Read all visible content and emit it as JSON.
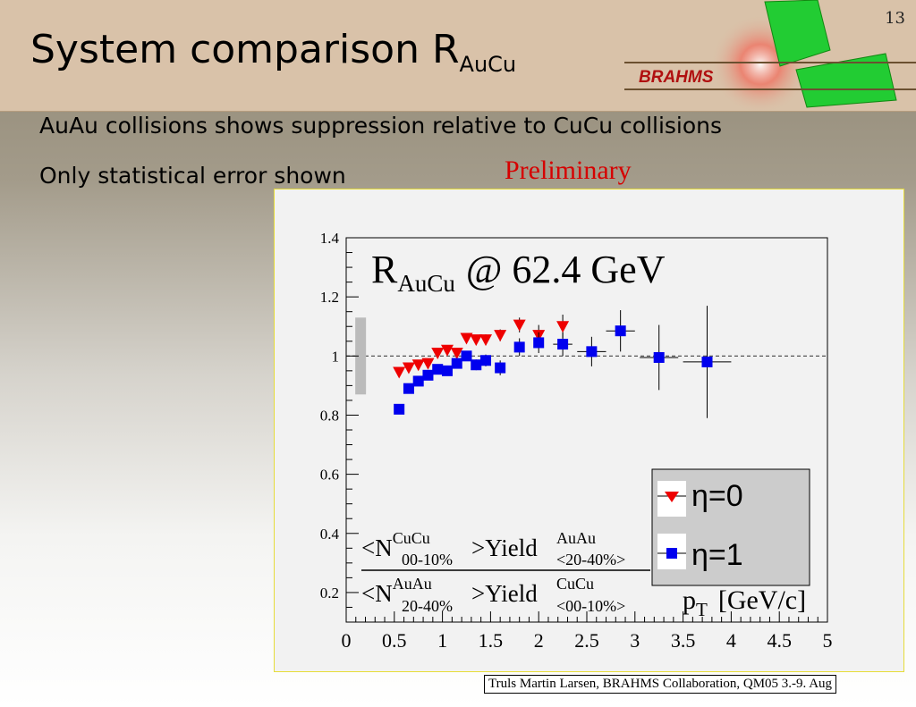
{
  "slide": {
    "page_number": "13",
    "title_main": "System comparison R",
    "title_sub": "AuCu",
    "bullets": [
      "AuAu collisions shows suppression relative to CuCu collisions",
      "Only statistical error shown"
    ],
    "preliminary": "Preliminary",
    "logo_text": "BRAHMS",
    "footer": "Truls Martin Larsen, BRAHMS Collaboration, QM05 3.-9. Aug"
  },
  "colors": {
    "eta0": "#ee0000",
    "eta1": "#0000ee",
    "header_bg": "#d9c2a9"
  },
  "chart_data": {
    "type": "scatter",
    "title_main": "R",
    "title_sub": "AuCu",
    "title_rest": "@ 62.4 GeV",
    "xlabel_main": "p",
    "xlabel_sub": "T",
    "xlabel_rest": "[GeV/c]",
    "xlim": [
      0,
      5
    ],
    "ylim": [
      0.1,
      1.4
    ],
    "x_ticks": [
      "0",
      "0.5",
      "1",
      "1.5",
      "2",
      "2.5",
      "3",
      "3.5",
      "4",
      "4.5",
      "5"
    ],
    "y_ticks": [
      "0.2",
      "0.4",
      "0.6",
      "0.8",
      "1",
      "1.2",
      "1.4"
    ],
    "reference_line": 1.0,
    "systematic_band": {
      "x": 0.15,
      "ymin": 0.87,
      "ymax": 1.13
    },
    "formula": {
      "num_pre": "<N",
      "num_sup1": "CuCu",
      "num_sub1": "00-10%",
      "num_mid": ">Yield",
      "num_sup2": "AuAu",
      "num_sub2": "<20-40%>",
      "den_pre": "<N",
      "den_sup1": "AuAu",
      "den_sub1": "20-40%",
      "den_mid": ">Yield",
      "den_sup2": "CuCu",
      "den_sub2": "<00-10%>"
    },
    "series": [
      {
        "name": "η=0",
        "marker": "triangle-down",
        "x": [
          0.55,
          0.65,
          0.75,
          0.85,
          0.95,
          1.05,
          1.15,
          1.25,
          1.35,
          1.45,
          1.6,
          1.8,
          2.0,
          2.25
        ],
        "y": [
          0.945,
          0.96,
          0.97,
          0.975,
          1.01,
          1.02,
          1.01,
          1.06,
          1.055,
          1.055,
          1.07,
          1.105,
          1.07,
          1.1
        ],
        "err": [
          0.01,
          0.01,
          0.01,
          0.01,
          0.012,
          0.012,
          0.014,
          0.015,
          0.015,
          0.018,
          0.02,
          0.025,
          0.035,
          0.04
        ]
      },
      {
        "name": "η=1",
        "marker": "square",
        "x": [
          0.55,
          0.65,
          0.75,
          0.85,
          0.95,
          1.05,
          1.15,
          1.25,
          1.35,
          1.45,
          1.6,
          1.8,
          2.0,
          2.25,
          2.55,
          2.85,
          3.25,
          3.75
        ],
        "y": [
          0.82,
          0.89,
          0.915,
          0.935,
          0.955,
          0.95,
          0.975,
          1.0,
          0.97,
          0.985,
          0.96,
          1.03,
          1.045,
          1.04,
          1.015,
          1.085,
          0.995,
          0.98
        ],
        "err": [
          0.01,
          0.01,
          0.01,
          0.012,
          0.012,
          0.014,
          0.015,
          0.016,
          0.018,
          0.02,
          0.025,
          0.03,
          0.035,
          0.04,
          0.05,
          0.07,
          0.11,
          0.19
        ],
        "xerr": [
          0,
          0,
          0,
          0,
          0,
          0,
          0,
          0,
          0,
          0,
          0,
          0,
          0,
          0.1,
          0.15,
          0.15,
          0.2,
          0.25
        ]
      }
    ]
  }
}
